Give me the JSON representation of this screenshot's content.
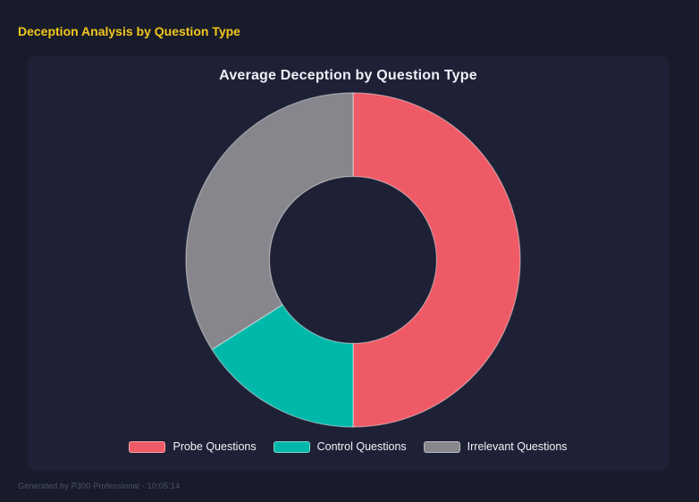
{
  "header": {
    "title": "Deception Analysis by Question Type"
  },
  "chart_data": {
    "type": "pie",
    "variant": "donut",
    "title": "Average Deception by Question Type",
    "categories": [
      "Probe Questions",
      "Control Questions",
      "Irrelevant Questions"
    ],
    "values_percent": [
      50,
      16,
      34
    ],
    "series_colors": [
      "#ee5a66",
      "#00b8aa",
      "#86868c"
    ],
    "segment_border_color": "rgba(255,255,255,0.45)",
    "inner_radius_ratio": 0.5,
    "start_angle_deg": 0,
    "direction": "clockwise",
    "legend_position": "bottom"
  },
  "footer": {
    "text": "Generated by P300 Professional - 10:05:14"
  },
  "colors": {
    "page_background": "#181b2a",
    "panel_background": "#1e2136",
    "header_accent": "#f2c71d",
    "title_text": "#eef0f5",
    "legend_text": "#f2f3f7",
    "footer_text": "#4e5468"
  }
}
